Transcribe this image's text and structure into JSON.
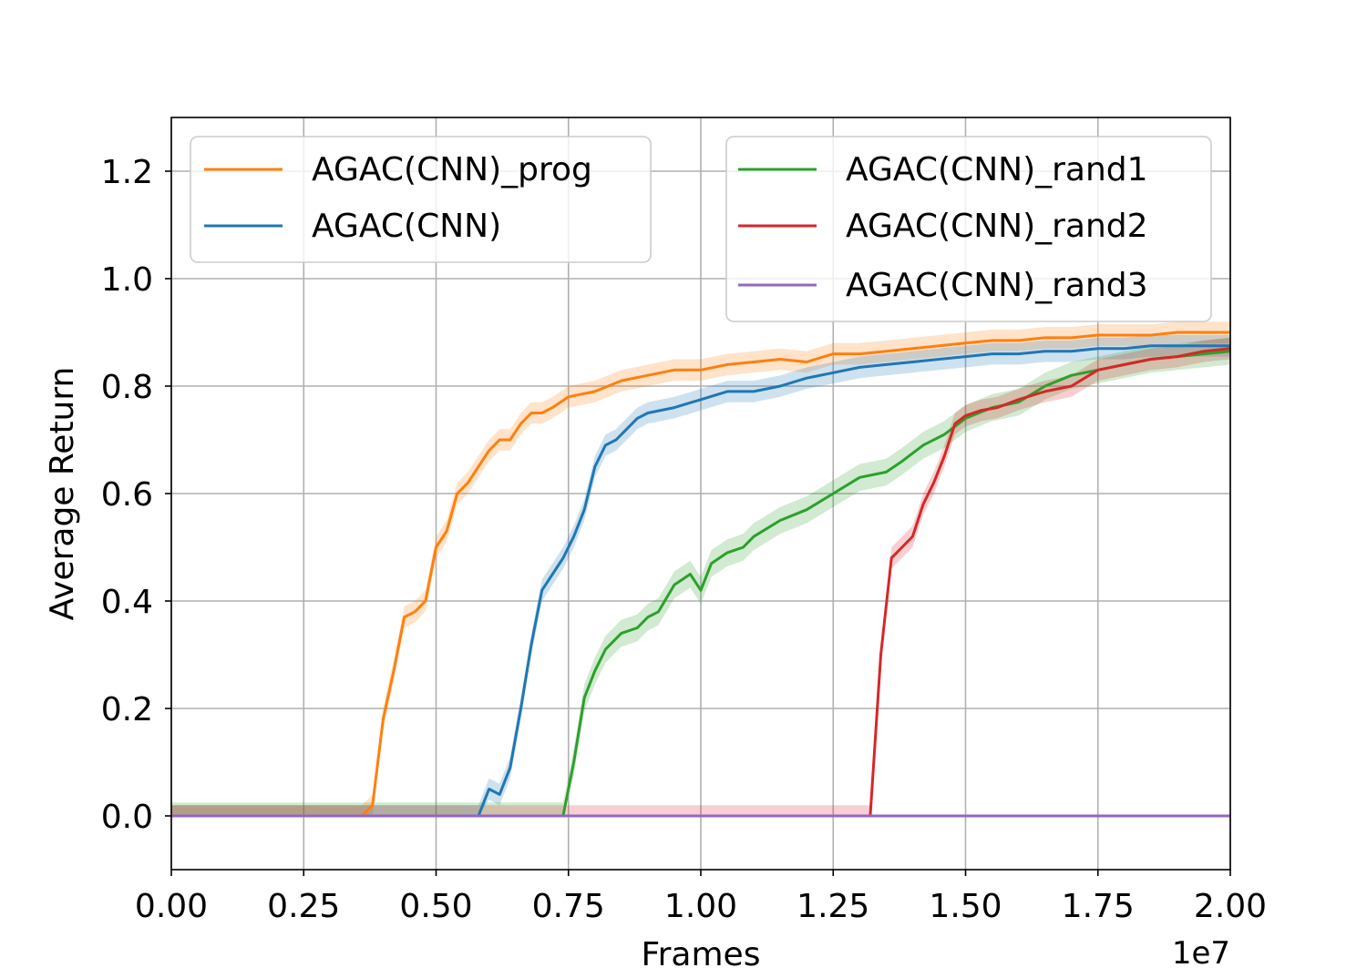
{
  "chart_data": {
    "type": "line",
    "title": "",
    "xlabel": "Frames",
    "ylabel": "Average Return",
    "x_offset_label": "1e7",
    "xlim": [
      0.0,
      2.0
    ],
    "ylim": [
      -0.1,
      1.3
    ],
    "xticks": [
      0.0,
      0.25,
      0.5,
      0.75,
      1.0,
      1.25,
      1.5,
      1.75,
      2.0
    ],
    "xtick_labels": [
      "0.00",
      "0.25",
      "0.50",
      "0.75",
      "1.00",
      "1.25",
      "1.50",
      "1.75",
      "2.00"
    ],
    "yticks": [
      0.0,
      0.2,
      0.4,
      0.6,
      0.8,
      1.0,
      1.2
    ],
    "ytick_labels": [
      "0.0",
      "0.2",
      "0.4",
      "0.6",
      "0.8",
      "1.0",
      "1.2"
    ],
    "grid": true,
    "legends": [
      {
        "position": "top-left",
        "entries": [
          "AGAC(CNN)_prog",
          "AGAC(CNN)"
        ]
      },
      {
        "position": "top-right",
        "entries": [
          "AGAC(CNN)_rand1",
          "AGAC(CNN)_rand2",
          "AGAC(CNN)_rand3"
        ]
      }
    ],
    "series": [
      {
        "name": "AGAC(CNN)_prog",
        "color": "#ff7f0e",
        "band": 0.02,
        "points": [
          [
            0,
            0
          ],
          [
            0.36,
            0
          ],
          [
            0.38,
            0.02
          ],
          [
            0.4,
            0.18
          ],
          [
            0.42,
            0.27
          ],
          [
            0.44,
            0.37
          ],
          [
            0.46,
            0.38
          ],
          [
            0.48,
            0.4
          ],
          [
            0.5,
            0.5
          ],
          [
            0.52,
            0.53
          ],
          [
            0.54,
            0.6
          ],
          [
            0.56,
            0.62
          ],
          [
            0.58,
            0.65
          ],
          [
            0.6,
            0.68
          ],
          [
            0.62,
            0.7
          ],
          [
            0.64,
            0.7
          ],
          [
            0.66,
            0.73
          ],
          [
            0.68,
            0.75
          ],
          [
            0.7,
            0.75
          ],
          [
            0.72,
            0.76
          ],
          [
            0.75,
            0.78
          ],
          [
            0.8,
            0.79
          ],
          [
            0.85,
            0.81
          ],
          [
            0.9,
            0.82
          ],
          [
            0.95,
            0.83
          ],
          [
            1.0,
            0.83
          ],
          [
            1.05,
            0.84
          ],
          [
            1.1,
            0.845
          ],
          [
            1.15,
            0.85
          ],
          [
            1.2,
            0.845
          ],
          [
            1.25,
            0.86
          ],
          [
            1.3,
            0.86
          ],
          [
            1.35,
            0.865
          ],
          [
            1.4,
            0.87
          ],
          [
            1.45,
            0.875
          ],
          [
            1.5,
            0.88
          ],
          [
            1.55,
            0.885
          ],
          [
            1.6,
            0.885
          ],
          [
            1.65,
            0.89
          ],
          [
            1.7,
            0.89
          ],
          [
            1.75,
            0.895
          ],
          [
            1.8,
            0.895
          ],
          [
            1.85,
            0.895
          ],
          [
            1.9,
            0.9
          ],
          [
            1.95,
            0.9
          ],
          [
            2.0,
            0.9
          ]
        ]
      },
      {
        "name": "AGAC(CNN)",
        "color": "#1f77b4",
        "band": 0.02,
        "points": [
          [
            0,
            0
          ],
          [
            0.58,
            0
          ],
          [
            0.6,
            0.05
          ],
          [
            0.62,
            0.04
          ],
          [
            0.64,
            0.09
          ],
          [
            0.66,
            0.2
          ],
          [
            0.68,
            0.32
          ],
          [
            0.7,
            0.42
          ],
          [
            0.72,
            0.45
          ],
          [
            0.74,
            0.48
          ],
          [
            0.76,
            0.52
          ],
          [
            0.78,
            0.57
          ],
          [
            0.8,
            0.65
          ],
          [
            0.82,
            0.69
          ],
          [
            0.84,
            0.7
          ],
          [
            0.86,
            0.72
          ],
          [
            0.88,
            0.74
          ],
          [
            0.9,
            0.75
          ],
          [
            0.95,
            0.76
          ],
          [
            1.0,
            0.775
          ],
          [
            1.05,
            0.79
          ],
          [
            1.1,
            0.79
          ],
          [
            1.15,
            0.8
          ],
          [
            1.2,
            0.815
          ],
          [
            1.25,
            0.825
          ],
          [
            1.3,
            0.835
          ],
          [
            1.35,
            0.84
          ],
          [
            1.4,
            0.845
          ],
          [
            1.45,
            0.85
          ],
          [
            1.5,
            0.855
          ],
          [
            1.55,
            0.86
          ],
          [
            1.6,
            0.86
          ],
          [
            1.65,
            0.865
          ],
          [
            1.7,
            0.865
          ],
          [
            1.75,
            0.87
          ],
          [
            1.8,
            0.87
          ],
          [
            1.85,
            0.875
          ],
          [
            1.9,
            0.875
          ],
          [
            1.95,
            0.875
          ],
          [
            2.0,
            0.875
          ]
        ]
      },
      {
        "name": "AGAC(CNN)_rand1",
        "color": "#2ca02c",
        "band": 0.025,
        "points": [
          [
            0,
            0
          ],
          [
            0.74,
            0
          ],
          [
            0.76,
            0.1
          ],
          [
            0.78,
            0.22
          ],
          [
            0.8,
            0.27
          ],
          [
            0.82,
            0.31
          ],
          [
            0.85,
            0.34
          ],
          [
            0.88,
            0.35
          ],
          [
            0.9,
            0.37
          ],
          [
            0.92,
            0.38
          ],
          [
            0.95,
            0.43
          ],
          [
            0.98,
            0.45
          ],
          [
            1.0,
            0.42
          ],
          [
            1.02,
            0.47
          ],
          [
            1.05,
            0.49
          ],
          [
            1.08,
            0.5
          ],
          [
            1.1,
            0.52
          ],
          [
            1.15,
            0.55
          ],
          [
            1.2,
            0.57
          ],
          [
            1.25,
            0.6
          ],
          [
            1.3,
            0.63
          ],
          [
            1.35,
            0.64
          ],
          [
            1.38,
            0.66
          ],
          [
            1.42,
            0.69
          ],
          [
            1.46,
            0.71
          ],
          [
            1.5,
            0.74
          ],
          [
            1.55,
            0.76
          ],
          [
            1.6,
            0.77
          ],
          [
            1.65,
            0.8
          ],
          [
            1.7,
            0.82
          ],
          [
            1.75,
            0.83
          ],
          [
            1.8,
            0.84
          ],
          [
            1.85,
            0.85
          ],
          [
            1.9,
            0.855
          ],
          [
            1.95,
            0.86
          ],
          [
            2.0,
            0.865
          ]
        ]
      },
      {
        "name": "AGAC(CNN)_rand2",
        "color": "#d62728",
        "band": 0.02,
        "points": [
          [
            0,
            0
          ],
          [
            1.32,
            0
          ],
          [
            1.34,
            0.3
          ],
          [
            1.36,
            0.48
          ],
          [
            1.38,
            0.5
          ],
          [
            1.4,
            0.52
          ],
          [
            1.42,
            0.58
          ],
          [
            1.44,
            0.62
          ],
          [
            1.46,
            0.67
          ],
          [
            1.48,
            0.73
          ],
          [
            1.5,
            0.745
          ],
          [
            1.53,
            0.755
          ],
          [
            1.56,
            0.76
          ],
          [
            1.6,
            0.775
          ],
          [
            1.65,
            0.79
          ],
          [
            1.7,
            0.8
          ],
          [
            1.75,
            0.83
          ],
          [
            1.8,
            0.84
          ],
          [
            1.85,
            0.85
          ],
          [
            1.9,
            0.855
          ],
          [
            1.95,
            0.865
          ],
          [
            2.0,
            0.87
          ]
        ]
      },
      {
        "name": "AGAC(CNN)_rand3",
        "color": "#9467bd",
        "band": 0,
        "points": [
          [
            0,
            0
          ],
          [
            2.0,
            0
          ]
        ]
      }
    ]
  }
}
